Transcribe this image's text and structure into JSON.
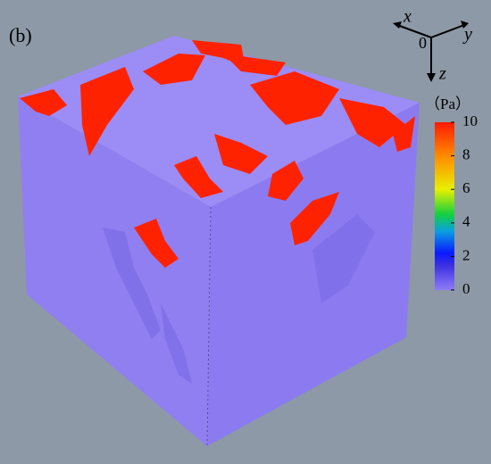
{
  "panel_label": "(b)",
  "axes_icon": {
    "origin": "0",
    "x": "x",
    "y": "y",
    "z": "z"
  },
  "colorbar": {
    "unit": "（Pa）",
    "range": [
      0,
      10
    ],
    "ticks": [
      0,
      2,
      4,
      6,
      8,
      10
    ]
  }
}
